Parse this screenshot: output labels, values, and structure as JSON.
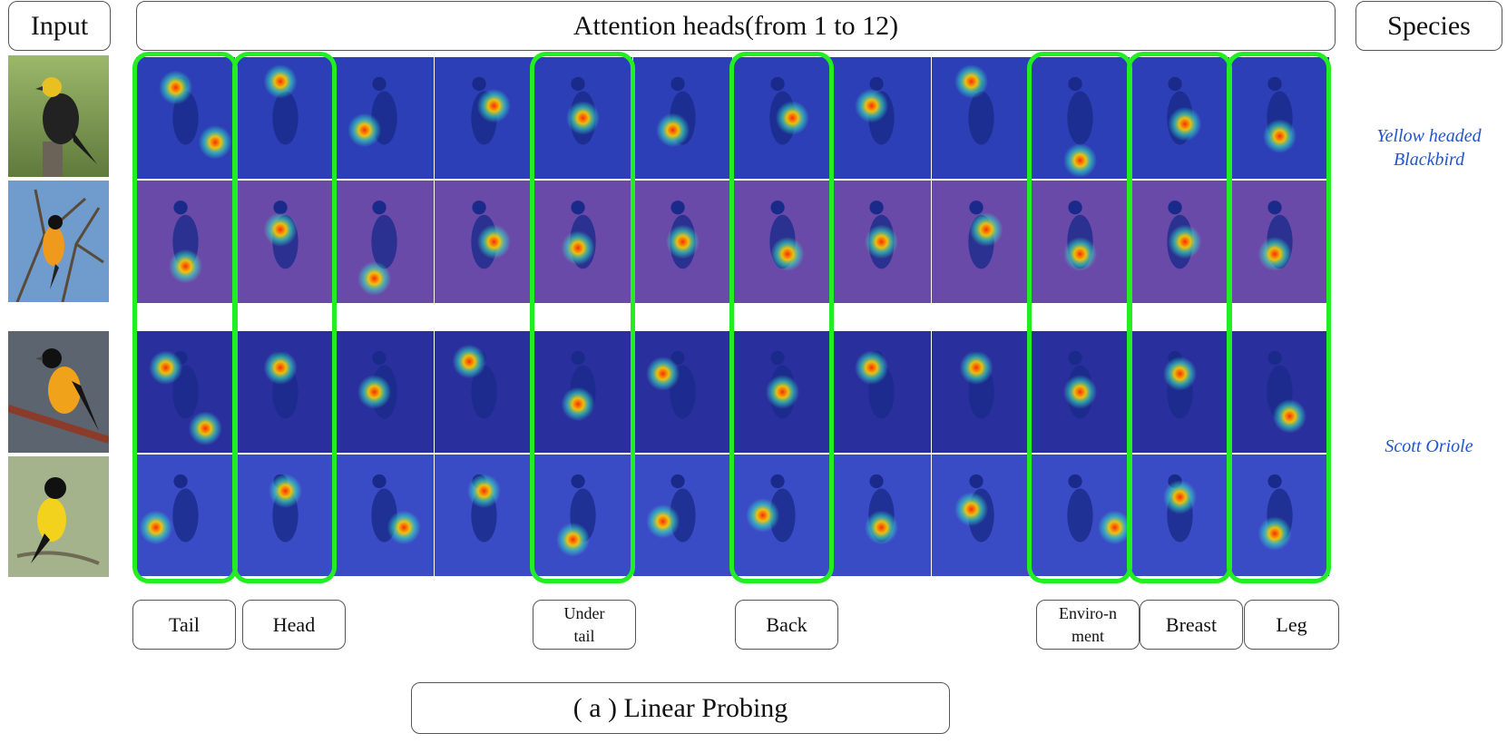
{
  "header": {
    "input_label": "Input",
    "attention_label": "Attention heads(from 1 to 12)",
    "species_label": "Species"
  },
  "species": [
    {
      "line1": "Yellow headed",
      "line2": "Blackbird"
    },
    {
      "line1": "Scott Oriole",
      "line2": ""
    }
  ],
  "part_labels": [
    "Tail",
    "Head",
    "Under",
    "tail",
    "Back",
    "Enviro-n",
    "ment",
    "Breast",
    "Leg"
  ],
  "caption": "( a ) Linear Probing",
  "colors": {
    "highlight": "#22ee22",
    "species_text": "#2255cc",
    "heatmap_low": "#1e2fb8",
    "heatmap_high": "#ff2a00"
  },
  "highlighted_heads": [
    1,
    2,
    5,
    7,
    10,
    11,
    12
  ],
  "icons": [
    "bird-photo",
    "attention-heatmap"
  ]
}
